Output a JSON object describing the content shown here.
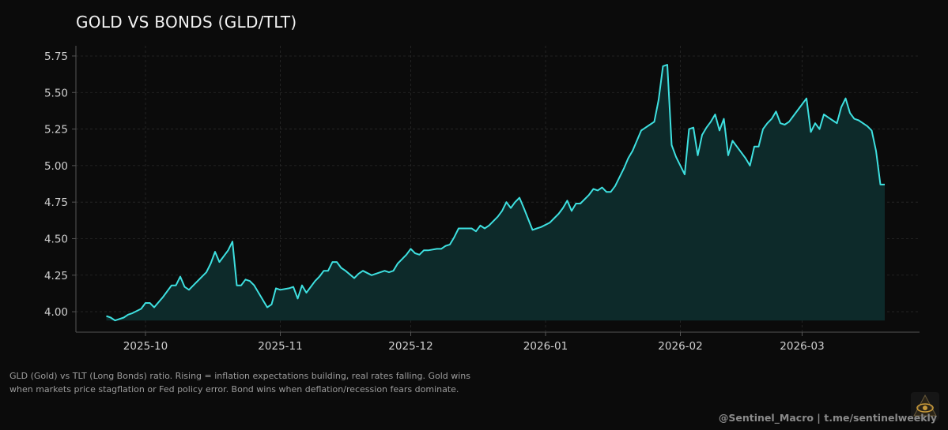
{
  "title": "GOLD VS BONDS (GLD/TLT)",
  "caption": "GLD (Gold) vs TLT (Long Bonds) ratio. Rising = inflation expectations building, real rates falling. Gold wins when markets price stagflation or Fed policy error. Bond wins when deflation/recession fears dominate.",
  "credit": "@Sentinel_Macro  |  t.me/sentinelweekly",
  "logo_icon": "eye-icon",
  "colors": {
    "background": "#0b0b0b",
    "line": "#3ee0e0",
    "fill": "#0d2a2a",
    "grid": "#2a2a2a",
    "axis": "#555555",
    "tick_text": "#d0d0d0"
  },
  "chart_data": {
    "type": "area",
    "title": "GOLD VS BONDS (GLD/TLT)",
    "xlabel": "",
    "ylabel": "",
    "x_start": "2025-09-22",
    "x_end": "2026-03-20",
    "xlim": [
      "2025-09-15",
      "2026-03-28"
    ],
    "ylim": [
      3.86,
      5.82
    ],
    "grid": true,
    "x_ticks": [
      {
        "date": "2025-10-01",
        "label": "2025-10"
      },
      {
        "date": "2025-11-01",
        "label": "2025-11"
      },
      {
        "date": "2025-12-01",
        "label": "2025-12"
      },
      {
        "date": "2026-01-01",
        "label": "2026-01"
      },
      {
        "date": "2026-02-01",
        "label": "2026-02"
      },
      {
        "date": "2026-03-01",
        "label": "2026-03"
      }
    ],
    "y_ticks": [
      "4.00",
      "4.25",
      "4.50",
      "4.75",
      "5.00",
      "5.25",
      "5.50",
      "5.75"
    ],
    "fill_baseline": 3.94,
    "series": [
      {
        "name": "GLD/TLT ratio",
        "points": [
          [
            "2025-09-22",
            3.97
          ],
          [
            "2025-09-23",
            3.96
          ],
          [
            "2025-09-24",
            3.94
          ],
          [
            "2025-09-25",
            3.95
          ],
          [
            "2025-09-26",
            3.96
          ],
          [
            "2025-09-27",
            3.98
          ],
          [
            "2025-09-28",
            3.99
          ],
          [
            "2025-09-30",
            4.02
          ],
          [
            "2025-10-01",
            4.06
          ],
          [
            "2025-10-02",
            4.06
          ],
          [
            "2025-10-03",
            4.03
          ],
          [
            "2025-10-05",
            4.1
          ],
          [
            "2025-10-07",
            4.18
          ],
          [
            "2025-10-08",
            4.18
          ],
          [
            "2025-10-09",
            4.24
          ],
          [
            "2025-10-10",
            4.17
          ],
          [
            "2025-10-11",
            4.15
          ],
          [
            "2025-10-12",
            4.18
          ],
          [
            "2025-10-14",
            4.24
          ],
          [
            "2025-10-15",
            4.27
          ],
          [
            "2025-10-16",
            4.33
          ],
          [
            "2025-10-17",
            4.41
          ],
          [
            "2025-10-18",
            4.34
          ],
          [
            "2025-10-20",
            4.42
          ],
          [
            "2025-10-21",
            4.48
          ],
          [
            "2025-10-22",
            4.18
          ],
          [
            "2025-10-23",
            4.18
          ],
          [
            "2025-10-24",
            4.22
          ],
          [
            "2025-10-25",
            4.21
          ],
          [
            "2025-10-26",
            4.18
          ],
          [
            "2025-10-28",
            4.08
          ],
          [
            "2025-10-29",
            4.03
          ],
          [
            "2025-10-30",
            4.05
          ],
          [
            "2025-10-31",
            4.16
          ],
          [
            "2025-11-01",
            4.15
          ],
          [
            "2025-11-03",
            4.16
          ],
          [
            "2025-11-04",
            4.17
          ],
          [
            "2025-11-05",
            4.09
          ],
          [
            "2025-11-06",
            4.18
          ],
          [
            "2025-11-07",
            4.13
          ],
          [
            "2025-11-09",
            4.21
          ],
          [
            "2025-11-10",
            4.24
          ],
          [
            "2025-11-11",
            4.28
          ],
          [
            "2025-11-12",
            4.28
          ],
          [
            "2025-11-13",
            4.34
          ],
          [
            "2025-11-14",
            4.34
          ],
          [
            "2025-11-15",
            4.3
          ],
          [
            "2025-11-16",
            4.28
          ],
          [
            "2025-11-18",
            4.23
          ],
          [
            "2025-11-19",
            4.26
          ],
          [
            "2025-11-20",
            4.28
          ],
          [
            "2025-11-22",
            4.25
          ],
          [
            "2025-11-23",
            4.26
          ],
          [
            "2025-11-25",
            4.28
          ],
          [
            "2025-11-26",
            4.27
          ],
          [
            "2025-11-27",
            4.28
          ],
          [
            "2025-11-28",
            4.33
          ],
          [
            "2025-11-29",
            4.36
          ],
          [
            "2025-11-30",
            4.39
          ],
          [
            "2025-12-01",
            4.43
          ],
          [
            "2025-12-02",
            4.4
          ],
          [
            "2025-12-03",
            4.39
          ],
          [
            "2025-12-04",
            4.42
          ],
          [
            "2025-12-05",
            4.42
          ],
          [
            "2025-12-07",
            4.43
          ],
          [
            "2025-12-08",
            4.43
          ],
          [
            "2025-12-09",
            4.45
          ],
          [
            "2025-12-10",
            4.46
          ],
          [
            "2025-12-11",
            4.51
          ],
          [
            "2025-12-12",
            4.57
          ],
          [
            "2025-12-13",
            4.57
          ],
          [
            "2025-12-14",
            4.57
          ],
          [
            "2025-12-15",
            4.57
          ],
          [
            "2025-12-16",
            4.55
          ],
          [
            "2025-12-17",
            4.59
          ],
          [
            "2025-12-18",
            4.57
          ],
          [
            "2025-12-19",
            4.59
          ],
          [
            "2025-12-21",
            4.65
          ],
          [
            "2025-12-22",
            4.69
          ],
          [
            "2025-12-23",
            4.75
          ],
          [
            "2025-12-24",
            4.71
          ],
          [
            "2025-12-25",
            4.75
          ],
          [
            "2025-12-26",
            4.78
          ],
          [
            "2025-12-27",
            4.71
          ],
          [
            "2025-12-29",
            4.56
          ],
          [
            "2025-12-30",
            4.57
          ],
          [
            "2025-12-31",
            4.58
          ],
          [
            "2026-01-02",
            4.61
          ],
          [
            "2026-01-03",
            4.64
          ],
          [
            "2026-01-04",
            4.67
          ],
          [
            "2026-01-05",
            4.71
          ],
          [
            "2026-01-06",
            4.76
          ],
          [
            "2026-01-07",
            4.69
          ],
          [
            "2026-01-08",
            4.74
          ],
          [
            "2026-01-09",
            4.74
          ],
          [
            "2026-01-10",
            4.77
          ],
          [
            "2026-01-11",
            4.8
          ],
          [
            "2026-01-12",
            4.84
          ],
          [
            "2026-01-13",
            4.83
          ],
          [
            "2026-01-14",
            4.85
          ],
          [
            "2026-01-15",
            4.82
          ],
          [
            "2026-01-16",
            4.82
          ],
          [
            "2026-01-17",
            4.86
          ],
          [
            "2026-01-18",
            4.92
          ],
          [
            "2026-01-19",
            4.98
          ],
          [
            "2026-01-20",
            5.05
          ],
          [
            "2026-01-21",
            5.1
          ],
          [
            "2026-01-22",
            5.17
          ],
          [
            "2026-01-23",
            5.24
          ],
          [
            "2026-01-24",
            5.26
          ],
          [
            "2026-01-25",
            5.28
          ],
          [
            "2026-01-26",
            5.3
          ],
          [
            "2026-01-27",
            5.45
          ],
          [
            "2026-01-28",
            5.68
          ],
          [
            "2026-01-29",
            5.69
          ],
          [
            "2026-01-30",
            5.14
          ],
          [
            "2026-01-31",
            5.06
          ],
          [
            "2026-02-01",
            5.0
          ],
          [
            "2026-02-02",
            4.94
          ],
          [
            "2026-02-03",
            5.25
          ],
          [
            "2026-02-04",
            5.26
          ],
          [
            "2026-02-05",
            5.07
          ],
          [
            "2026-02-06",
            5.21
          ],
          [
            "2026-02-07",
            5.26
          ],
          [
            "2026-02-08",
            5.3
          ],
          [
            "2026-02-09",
            5.35
          ],
          [
            "2026-02-10",
            5.24
          ],
          [
            "2026-02-11",
            5.32
          ],
          [
            "2026-02-12",
            5.07
          ],
          [
            "2026-02-13",
            5.17
          ],
          [
            "2026-02-14",
            5.13
          ],
          [
            "2026-02-15",
            5.09
          ],
          [
            "2026-02-16",
            5.05
          ],
          [
            "2026-02-17",
            5.0
          ],
          [
            "2026-02-18",
            5.13
          ],
          [
            "2026-02-19",
            5.13
          ],
          [
            "2026-02-20",
            5.25
          ],
          [
            "2026-02-21",
            5.29
          ],
          [
            "2026-02-22",
            5.32
          ],
          [
            "2026-02-23",
            5.37
          ],
          [
            "2026-02-24",
            5.29
          ],
          [
            "2026-02-25",
            5.28
          ],
          [
            "2026-02-26",
            5.3
          ],
          [
            "2026-02-27",
            5.34
          ],
          [
            "2026-02-28",
            5.38
          ],
          [
            "2026-03-01",
            5.42
          ],
          [
            "2026-03-02",
            5.46
          ],
          [
            "2026-03-03",
            5.23
          ],
          [
            "2026-03-04",
            5.29
          ],
          [
            "2026-03-05",
            5.25
          ],
          [
            "2026-03-06",
            5.35
          ],
          [
            "2026-03-07",
            5.33
          ],
          [
            "2026-03-08",
            5.31
          ],
          [
            "2026-03-09",
            5.29
          ],
          [
            "2026-03-10",
            5.4
          ],
          [
            "2026-03-11",
            5.46
          ],
          [
            "2026-03-12",
            5.36
          ],
          [
            "2026-03-13",
            5.32
          ],
          [
            "2026-03-14",
            5.31
          ],
          [
            "2026-03-15",
            5.29
          ],
          [
            "2026-03-16",
            5.27
          ],
          [
            "2026-03-17",
            5.24
          ],
          [
            "2026-03-18",
            5.1
          ],
          [
            "2026-03-19",
            4.87
          ],
          [
            "2026-03-20",
            4.87
          ]
        ]
      }
    ]
  }
}
